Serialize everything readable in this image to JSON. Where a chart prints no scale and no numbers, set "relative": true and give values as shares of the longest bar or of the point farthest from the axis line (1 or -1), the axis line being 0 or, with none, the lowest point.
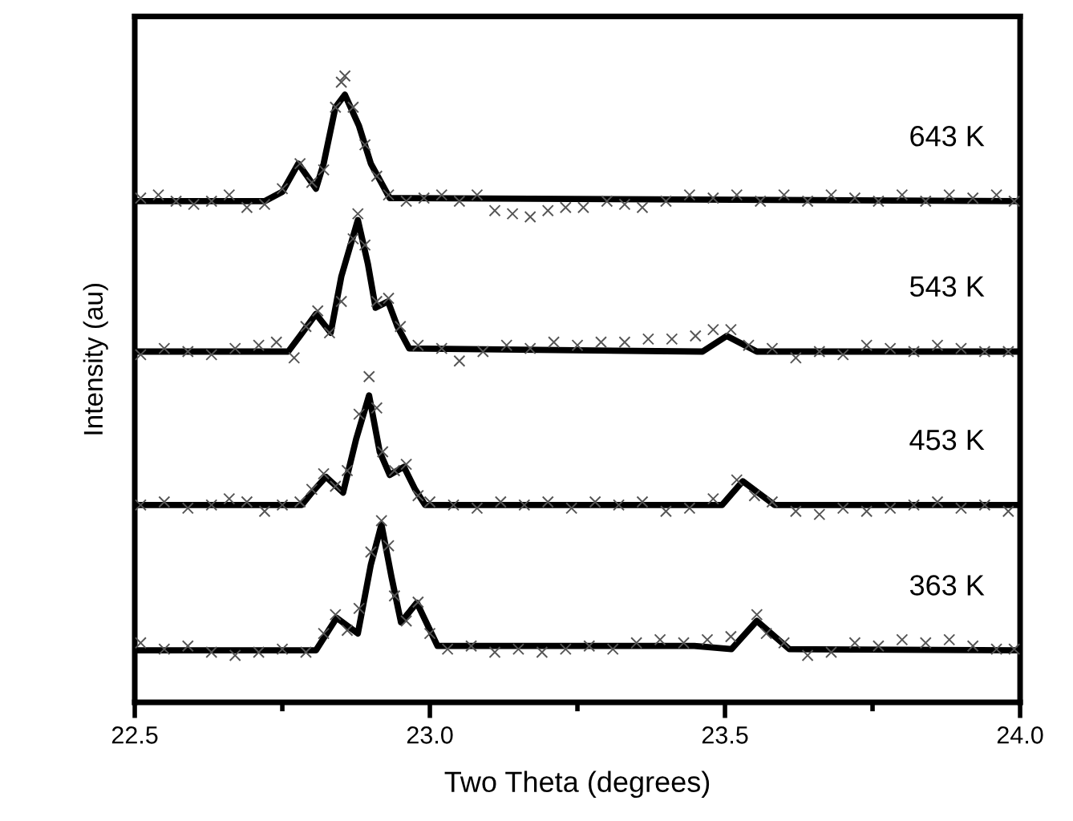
{
  "chart_data": {
    "type": "line",
    "relative": true,
    "xlabel": "Two Theta (degrees)",
    "ylabel": "Intensity (au)",
    "xlim": [
      22.5,
      24.0
    ],
    "xticks": [
      22.5,
      {
        "value": 22.75,
        "label": null
      },
      {
        "value": 23.0,
        "label": "23.0"
      },
      {
        "value": 23.25,
        "label": null
      },
      23.5,
      {
        "value": 23.75,
        "label": null
      },
      {
        "value": 24.0,
        "label": "24.0"
      }
    ],
    "tick_labels": "x",
    "grid": false,
    "legend": false,
    "line_style": "solid",
    "series": [
      {
        "name": "643 K",
        "marker": "none",
        "color": "#000000",
        "x": [
          22.5,
          22.72,
          22.75,
          22.777,
          22.807,
          22.82,
          22.84,
          22.856,
          22.88,
          22.9,
          22.932,
          24.0
        ],
        "values": [
          0.8,
          0.8,
          0.815,
          0.86,
          0.82,
          0.86,
          0.95,
          0.97,
          0.92,
          0.86,
          0.805,
          0.8
        ]
      },
      {
        "type": "scatter",
        "marker": "cross",
        "color": "#555555",
        "x": [
          22.51,
          22.54,
          22.57,
          22.6,
          22.63,
          22.66,
          22.69,
          22.72,
          22.75,
          22.78,
          22.8,
          22.82,
          22.84,
          22.85,
          22.856,
          22.87,
          22.89,
          22.91,
          22.93,
          22.96,
          22.99,
          23.02,
          23.05,
          23.08,
          23.11,
          23.14,
          23.17,
          23.2,
          23.23,
          23.26,
          23.3,
          23.33,
          23.36,
          23.4,
          23.44,
          23.48,
          23.52,
          23.56,
          23.6,
          23.64,
          23.68,
          23.72,
          23.76,
          23.8,
          23.84,
          23.88,
          23.92,
          23.96,
          23.99
        ],
        "values": [
          0.805,
          0.81,
          0.8,
          0.795,
          0.8,
          0.81,
          0.79,
          0.795,
          0.82,
          0.86,
          0.83,
          0.85,
          0.95,
          0.99,
          1.0,
          0.95,
          0.89,
          0.84,
          0.81,
          0.8,
          0.805,
          0.81,
          0.8,
          0.81,
          0.785,
          0.78,
          0.775,
          0.785,
          0.79,
          0.79,
          0.8,
          0.795,
          0.79,
          0.8,
          0.81,
          0.805,
          0.81,
          0.8,
          0.81,
          0.8,
          0.81,
          0.805,
          0.8,
          0.81,
          0.8,
          0.81,
          0.805,
          0.81,
          0.8
        ]
      },
      {
        "name": "543 K",
        "marker": "none",
        "color": "#000000",
        "x": [
          22.5,
          22.76,
          22.78,
          22.807,
          22.832,
          22.85,
          22.878,
          22.895,
          22.908,
          22.929,
          22.945,
          22.965,
          23.462,
          23.503,
          23.554,
          24.0
        ],
        "values": [
          0.56,
          0.56,
          0.585,
          0.62,
          0.59,
          0.68,
          0.77,
          0.7,
          0.63,
          0.64,
          0.6,
          0.565,
          0.56,
          0.585,
          0.56,
          0.56
        ]
      },
      {
        "type": "scatter",
        "marker": "cross",
        "color": "#555555",
        "x": [
          22.51,
          22.55,
          22.59,
          22.63,
          22.67,
          22.71,
          22.74,
          22.77,
          22.79,
          22.81,
          22.83,
          22.85,
          22.87,
          22.878,
          22.89,
          22.91,
          22.93,
          22.95,
          22.98,
          23.02,
          23.05,
          23.09,
          23.13,
          23.17,
          23.21,
          23.25,
          23.29,
          23.33,
          23.37,
          23.41,
          23.45,
          23.48,
          23.51,
          23.54,
          23.58,
          23.62,
          23.66,
          23.7,
          23.74,
          23.78,
          23.82,
          23.86,
          23.9,
          23.94,
          23.98
        ],
        "values": [
          0.555,
          0.565,
          0.56,
          0.555,
          0.565,
          0.57,
          0.575,
          0.55,
          0.6,
          0.625,
          0.59,
          0.64,
          0.74,
          0.78,
          0.73,
          0.64,
          0.645,
          0.6,
          0.57,
          0.565,
          0.545,
          0.56,
          0.57,
          0.565,
          0.575,
          0.57,
          0.575,
          0.575,
          0.58,
          0.58,
          0.585,
          0.595,
          0.595,
          0.57,
          0.565,
          0.55,
          0.56,
          0.555,
          0.57,
          0.565,
          0.56,
          0.57,
          0.565,
          0.56,
          0.56
        ]
      },
      {
        "name": "453 K",
        "marker": "none",
        "color": "#000000",
        "x": [
          22.5,
          22.783,
          22.8,
          22.824,
          22.853,
          22.875,
          22.897,
          22.915,
          22.932,
          22.956,
          22.975,
          22.992,
          23.495,
          23.53,
          23.584,
          24.0
        ],
        "values": [
          0.315,
          0.315,
          0.335,
          0.36,
          0.335,
          0.42,
          0.49,
          0.4,
          0.363,
          0.376,
          0.34,
          0.315,
          0.315,
          0.353,
          0.315,
          0.315
        ]
      },
      {
        "type": "scatter",
        "marker": "cross",
        "color": "#555555",
        "x": [
          22.51,
          22.55,
          22.59,
          22.63,
          22.66,
          22.69,
          22.72,
          22.75,
          22.78,
          22.8,
          22.82,
          22.84,
          22.86,
          22.88,
          22.897,
          22.91,
          22.92,
          22.94,
          22.96,
          22.98,
          23.0,
          23.04,
          23.08,
          23.12,
          23.16,
          23.2,
          23.24,
          23.28,
          23.32,
          23.36,
          23.4,
          23.44,
          23.48,
          23.52,
          23.55,
          23.58,
          23.62,
          23.66,
          23.7,
          23.74,
          23.78,
          23.82,
          23.86,
          23.9,
          23.94,
          23.98
        ],
        "values": [
          0.315,
          0.32,
          0.31,
          0.315,
          0.325,
          0.32,
          0.305,
          0.315,
          0.32,
          0.34,
          0.365,
          0.345,
          0.37,
          0.46,
          0.52,
          0.47,
          0.4,
          0.37,
          0.38,
          0.33,
          0.32,
          0.315,
          0.31,
          0.32,
          0.315,
          0.32,
          0.31,
          0.32,
          0.315,
          0.32,
          0.305,
          0.31,
          0.325,
          0.355,
          0.33,
          0.32,
          0.305,
          0.3,
          0.31,
          0.305,
          0.31,
          0.315,
          0.32,
          0.31,
          0.315,
          0.305
        ]
      },
      {
        "name": "363 K",
        "marker": "none",
        "color": "#000000",
        "x": [
          22.5,
          22.807,
          22.842,
          22.878,
          22.9,
          22.918,
          22.935,
          22.951,
          22.978,
          23.013,
          23.405,
          23.448,
          23.511,
          23.554,
          23.609,
          24.0
        ],
        "values": [
          0.083,
          0.083,
          0.135,
          0.11,
          0.22,
          0.284,
          0.2,
          0.128,
          0.159,
          0.09,
          0.09,
          0.09,
          0.085,
          0.13,
          0.085,
          0.083
        ]
      },
      {
        "type": "scatter",
        "marker": "cross",
        "color": "#555555",
        "x": [
          22.51,
          22.55,
          22.59,
          22.63,
          22.67,
          22.71,
          22.75,
          22.79,
          22.82,
          22.84,
          22.86,
          22.88,
          22.9,
          22.918,
          22.93,
          22.94,
          22.96,
          22.98,
          23.0,
          23.03,
          23.07,
          23.11,
          23.15,
          23.19,
          23.23,
          23.27,
          23.31,
          23.35,
          23.39,
          23.43,
          23.47,
          23.51,
          23.554,
          23.57,
          23.6,
          23.64,
          23.68,
          23.72,
          23.76,
          23.8,
          23.84,
          23.88,
          23.92,
          23.96,
          23.99
        ],
        "values": [
          0.095,
          0.085,
          0.09,
          0.08,
          0.075,
          0.08,
          0.085,
          0.08,
          0.11,
          0.14,
          0.115,
          0.15,
          0.24,
          0.29,
          0.25,
          0.17,
          0.13,
          0.16,
          0.11,
          0.085,
          0.09,
          0.08,
          0.085,
          0.08,
          0.085,
          0.09,
          0.085,
          0.095,
          0.1,
          0.095,
          0.1,
          0.105,
          0.14,
          0.11,
          0.095,
          0.075,
          0.08,
          0.095,
          0.09,
          0.1,
          0.095,
          0.1,
          0.09,
          0.085,
          0.085
        ]
      }
    ]
  }
}
